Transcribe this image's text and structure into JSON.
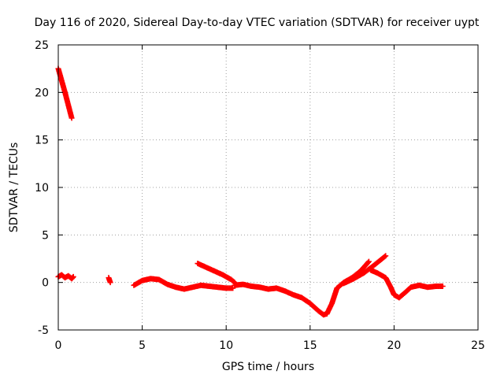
{
  "chart_data": {
    "type": "scatter",
    "title": "Day 116 of 2020, Sidereal Day-to-day VTEC variation (SDTVAR) for receiver uypt",
    "xlabel": "GPS time / hours",
    "ylabel": "SDTVAR / TECUs",
    "xlim": [
      0,
      25
    ],
    "ylim": [
      -5,
      25
    ],
    "xticks": [
      "0",
      "5",
      "10",
      "15",
      "20",
      "25"
    ],
    "yticks": [
      "-5",
      "0",
      "5",
      "10",
      "15",
      "20",
      "25"
    ],
    "grid": true,
    "marker": "plus",
    "series_color": "#ff0000",
    "segments": [
      {
        "x": [
          0.0,
          0.4,
          0.8
        ],
        "y": [
          22.5,
          20.0,
          17.3
        ]
      },
      {
        "x": [
          0.0,
          0.2,
          0.4,
          0.6,
          0.8,
          0.9
        ],
        "y": [
          0.6,
          0.8,
          0.5,
          0.7,
          0.4,
          0.6
        ]
      },
      {
        "x": [
          3.0,
          3.1
        ],
        "y": [
          0.5,
          0.0
        ]
      },
      {
        "x": [
          4.5,
          5.0,
          5.5,
          6.0,
          6.5,
          7.0,
          7.5,
          8.0,
          8.5,
          9.0,
          9.5,
          10.0,
          10.4
        ],
        "y": [
          -0.3,
          0.2,
          0.4,
          0.3,
          -0.2,
          -0.5,
          -0.7,
          -0.5,
          -0.3,
          -0.4,
          -0.5,
          -0.6,
          -0.6
        ]
      },
      {
        "x": [
          8.3,
          8.8,
          9.3,
          9.8,
          10.3,
          10.5
        ],
        "y": [
          2.0,
          1.6,
          1.2,
          0.8,
          0.3,
          0.0
        ]
      },
      {
        "x": [
          10.5,
          11.0,
          11.5,
          12.0,
          12.5,
          13.0,
          13.5,
          14.0,
          14.5,
          15.0,
          15.5,
          15.8,
          16.0
        ],
        "y": [
          -0.3,
          -0.2,
          -0.4,
          -0.5,
          -0.7,
          -0.6,
          -0.9,
          -1.3,
          -1.6,
          -2.2,
          -3.0,
          -3.4,
          -3.3
        ]
      },
      {
        "x": [
          16.0,
          16.3,
          16.6,
          17.0,
          17.5,
          18.0,
          18.5
        ],
        "y": [
          -3.3,
          -2.2,
          -0.6,
          0.0,
          0.5,
          1.2,
          2.2
        ]
      },
      {
        "x": [
          17.0,
          17.6,
          18.2,
          18.8,
          19.5
        ],
        "y": [
          -0.1,
          0.4,
          1.0,
          1.8,
          2.8
        ]
      },
      {
        "x": [
          18.6,
          19.0,
          19.5,
          19.8,
          20.0,
          20.3,
          20.7,
          21.0,
          21.5,
          22.0,
          22.5,
          22.9
        ],
        "y": [
          1.3,
          1.0,
          0.5,
          -0.5,
          -1.3,
          -1.6,
          -1.0,
          -0.5,
          -0.3,
          -0.5,
          -0.4,
          -0.4
        ]
      }
    ]
  }
}
